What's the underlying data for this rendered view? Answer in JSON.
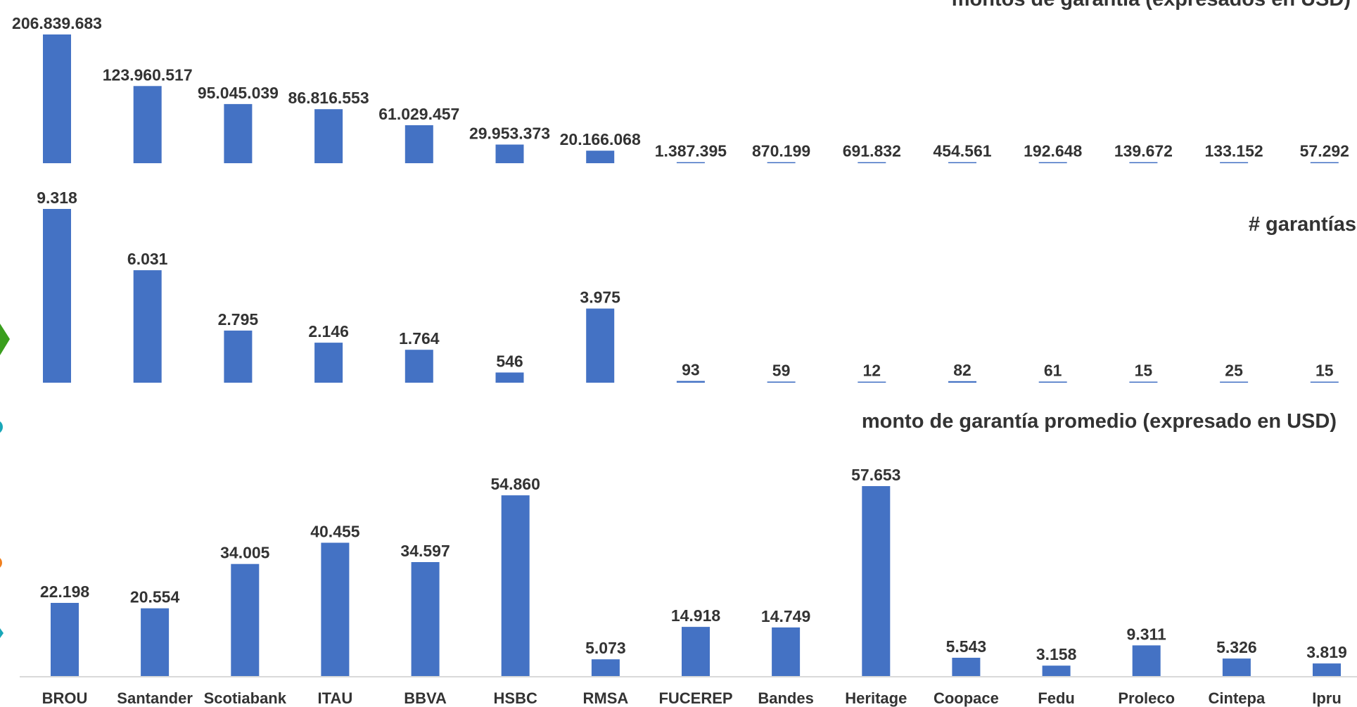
{
  "colors": {
    "bar": "#4472C4",
    "text": "#333333",
    "axis": "#D9D9D9",
    "edge_shapes": [
      "#3A9E1D",
      "#19A7B8",
      "#F07F1E",
      "#19A7B8"
    ]
  },
  "categories": [
    "BROU",
    "Santander",
    "Scotiabank",
    "ITAU",
    "BBVA",
    "HSBC",
    "RMSA",
    "FUCEREP",
    "Bandes",
    "Heritage",
    "Coopace",
    "Fedu",
    "Proleco",
    "Cintepa",
    "Ipru"
  ],
  "chart_data": [
    {
      "type": "bar",
      "title": "montos de garantía (expresados en USD)",
      "categories": [
        "BROU",
        "Santander",
        "Scotiabank",
        "ITAU",
        "BBVA",
        "HSBC",
        "RMSA",
        "FUCEREP",
        "Bandes",
        "Heritage",
        "Coopace",
        "Fedu",
        "Proleco",
        "Cintepa",
        "Ipru"
      ],
      "values": [
        206839683,
        123960517,
        95045039,
        86816553,
        61029457,
        29953373,
        20166068,
        1387395,
        870199,
        691832,
        454561,
        192648,
        139672,
        133152,
        57292
      ],
      "labels": [
        "206.839.683",
        "123.960.517",
        "95.045.039",
        "86.816.553",
        "61.029.457",
        "29.953.373",
        "20.166.068",
        "1.387.395",
        "870.199",
        "691.832",
        "454.561",
        "192.648",
        "139.672",
        "133.152",
        "57.292"
      ],
      "grid": false
    },
    {
      "type": "bar",
      "title": "# garantías",
      "categories": [
        "BROU",
        "Santander",
        "Scotiabank",
        "ITAU",
        "BBVA",
        "HSBC",
        "RMSA",
        "FUCEREP",
        "Bandes",
        "Heritage",
        "Coopace",
        "Fedu",
        "Proleco",
        "Cintepa",
        "Ipru"
      ],
      "values": [
        9318,
        6031,
        2795,
        2146,
        1764,
        546,
        3975,
        93,
        59,
        12,
        82,
        61,
        15,
        25,
        15
      ],
      "labels": [
        "9.318",
        "6.031",
        "2.795",
        "2.146",
        "1.764",
        "546",
        "3.975",
        "93",
        "59",
        "12",
        "82",
        "61",
        "15",
        "25",
        "15"
      ],
      "grid": false
    },
    {
      "type": "bar",
      "title": "monto de garantía promedio (expresado en USD)",
      "categories": [
        "BROU",
        "Santander",
        "Scotiabank",
        "ITAU",
        "BBVA",
        "HSBC",
        "RMSA",
        "FUCEREP",
        "Bandes",
        "Heritage",
        "Coopace",
        "Fedu",
        "Proleco",
        "Cintepa",
        "Ipru"
      ],
      "values": [
        22198,
        20554,
        34005,
        40455,
        34597,
        54860,
        5073,
        14918,
        14749,
        57653,
        5543,
        3158,
        9311,
        5326,
        3819
      ],
      "labels": [
        "22.198",
        "20.554",
        "34.005",
        "40.455",
        "34.597",
        "54.860",
        "5.073",
        "14.918",
        "14.749",
        "57.653",
        "5.543",
        "3.158",
        "9.311",
        "5.326",
        "3.819"
      ],
      "grid": false
    }
  ]
}
